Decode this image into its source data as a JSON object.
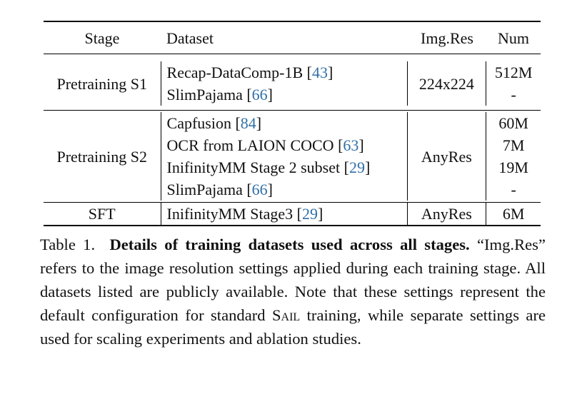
{
  "table": {
    "headers": {
      "stage": "Stage",
      "dataset": "Dataset",
      "res": "Img.Res",
      "num": "Num"
    },
    "groups": [
      {
        "stage": "Pretraining S1",
        "res": "224x224",
        "rows": [
          {
            "name": "Recap-DataComp-1B [",
            "cite": "43",
            "close": "]",
            "num": "512M"
          },
          {
            "name": "SlimPajama [",
            "cite": "66",
            "close": "]",
            "num": "-"
          }
        ]
      },
      {
        "stage": "Pretraining S2",
        "res": "AnyRes",
        "rows": [
          {
            "name": "Capfusion [",
            "cite": "84",
            "close": "]",
            "num": "60M"
          },
          {
            "name": "OCR from LAION COCO [",
            "cite": "63",
            "close": "]",
            "num": "7M"
          },
          {
            "name": "InifinityMM Stage 2 subset [",
            "cite": "29",
            "close": "]",
            "num": "19M"
          },
          {
            "name": "SlimPajama [",
            "cite": "66",
            "close": "]",
            "num": "-"
          }
        ]
      },
      {
        "stage": "SFT",
        "res": "AnyRes",
        "rows": [
          {
            "name": "InifinityMM Stage3 [",
            "cite": "29",
            "close": "]",
            "num": "6M"
          }
        ]
      }
    ]
  },
  "caption": {
    "label": "Table 1.",
    "title": "Details of training datasets used across all stages.",
    "text_1": "“Img.Res” refers to the image resolution settings applied during each training stage. All datasets listed are publicly available. Note that these settings represent the default configuration for standard",
    "sail": "Sail",
    "text_2": "training, while separate settings are used for scaling experiments and ablation studies."
  }
}
